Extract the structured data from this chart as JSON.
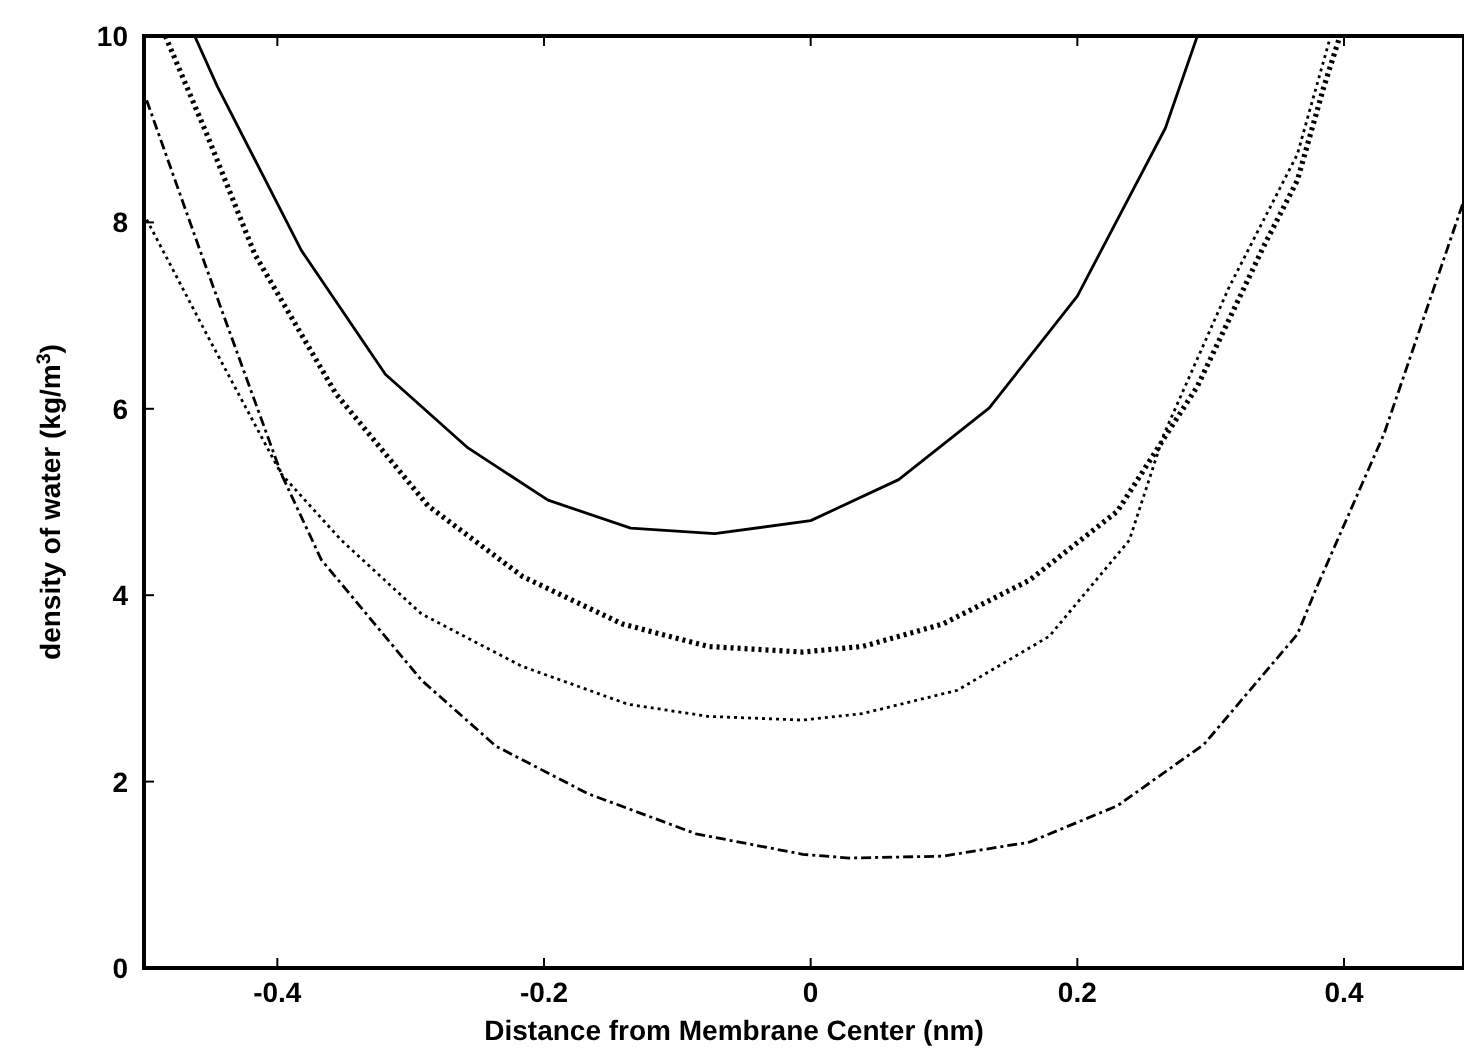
{
  "chart_data": {
    "type": "line",
    "xlabel": "Distance from Membrane Center (nm)",
    "ylabel": "density of water  (kg/m$^{3}$)",
    "xlim": [
      -0.5,
      0.49
    ],
    "ylim": [
      0,
      10
    ],
    "xticks": [
      -0.4,
      -0.2,
      0,
      0.2,
      0.4
    ],
    "yticks": [
      0,
      2,
      4,
      6,
      8,
      10
    ],
    "grid": false,
    "marker": "none",
    "series": [
      {
        "color": "#000000",
        "line_style": "solid",
        "x": [
          -0.462,
          -0.445,
          -0.382,
          -0.319,
          -0.257,
          -0.197,
          -0.135,
          -0.072,
          0,
          0.066,
          0.134,
          0.2,
          0.266,
          0.29
        ],
        "values": [
          10,
          9.46,
          7.7,
          6.37,
          5.58,
          5.02,
          4.72,
          4.66,
          4.8,
          5.24,
          6.01,
          7.21,
          9.01,
          10
        ]
      },
      {
        "color": "#000000",
        "line_style": "dotted",
        "x": [
          -0.484,
          -0.453,
          -0.417,
          -0.356,
          -0.287,
          -0.216,
          -0.141,
          -0.077,
          -0.006,
          0.039,
          0.099,
          0.164,
          0.23,
          0.29,
          0.34,
          0.365,
          0.385,
          0.397
        ],
        "values": [
          10,
          8.95,
          7.66,
          6.16,
          4.96,
          4.2,
          3.69,
          3.45,
          3.39,
          3.45,
          3.69,
          4.16,
          4.9,
          6.24,
          7.75,
          8.45,
          9.46,
          10
        ]
      },
      {
        "color": "#000000",
        "line_style": "dotted",
        "x": [
          -0.498,
          -0.453,
          -0.397,
          -0.352,
          -0.292,
          -0.217,
          -0.137,
          -0.077,
          -0.006,
          0.039,
          0.11,
          0.179,
          0.239,
          0.265,
          0.314,
          0.365,
          0.39
        ],
        "values": [
          8.03,
          6.8,
          5.3,
          4.59,
          3.8,
          3.24,
          2.83,
          2.7,
          2.66,
          2.73,
          2.98,
          3.56,
          4.59,
          5.73,
          7.31,
          8.73,
          10
        ]
      },
      {
        "color": "#000000",
        "line_style": "dashed",
        "x": [
          -0.498,
          -0.457,
          -0.397,
          -0.367,
          -0.292,
          -0.236,
          -0.167,
          -0.086,
          -0.006,
          0.029,
          0.099,
          0.164,
          0.23,
          0.295,
          0.365,
          0.38,
          0.43,
          0.49
        ],
        "values": [
          9.31,
          7.66,
          5.3,
          4.38,
          3.09,
          2.38,
          1.87,
          1.44,
          1.22,
          1.18,
          1.2,
          1.35,
          1.74,
          2.4,
          3.58,
          4.1,
          5.73,
          8.24
        ]
      }
    ]
  }
}
